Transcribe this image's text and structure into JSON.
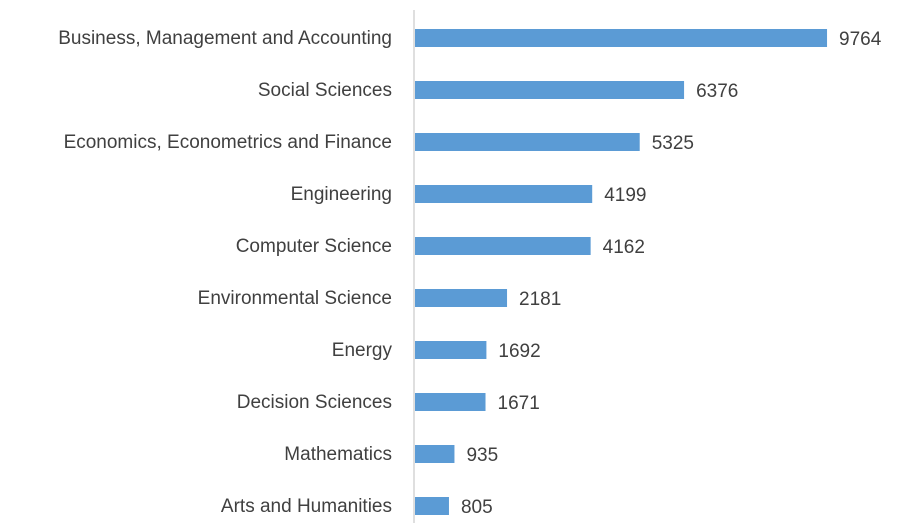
{
  "chart_data": {
    "type": "bar",
    "orientation": "horizontal",
    "categories": [
      "Business, Management and Accounting",
      "Social Sciences",
      "Economics, Econometrics and Finance",
      "Engineering",
      "Computer Science",
      "Environmental Science",
      "Energy",
      "Decision Sciences",
      "Mathematics",
      "Arts and Humanities"
    ],
    "values": [
      9764,
      6376,
      5325,
      4199,
      4162,
      2181,
      1692,
      1671,
      935,
      805
    ],
    "color": "#5b9bd5",
    "xlim": [
      0,
      10000
    ]
  }
}
